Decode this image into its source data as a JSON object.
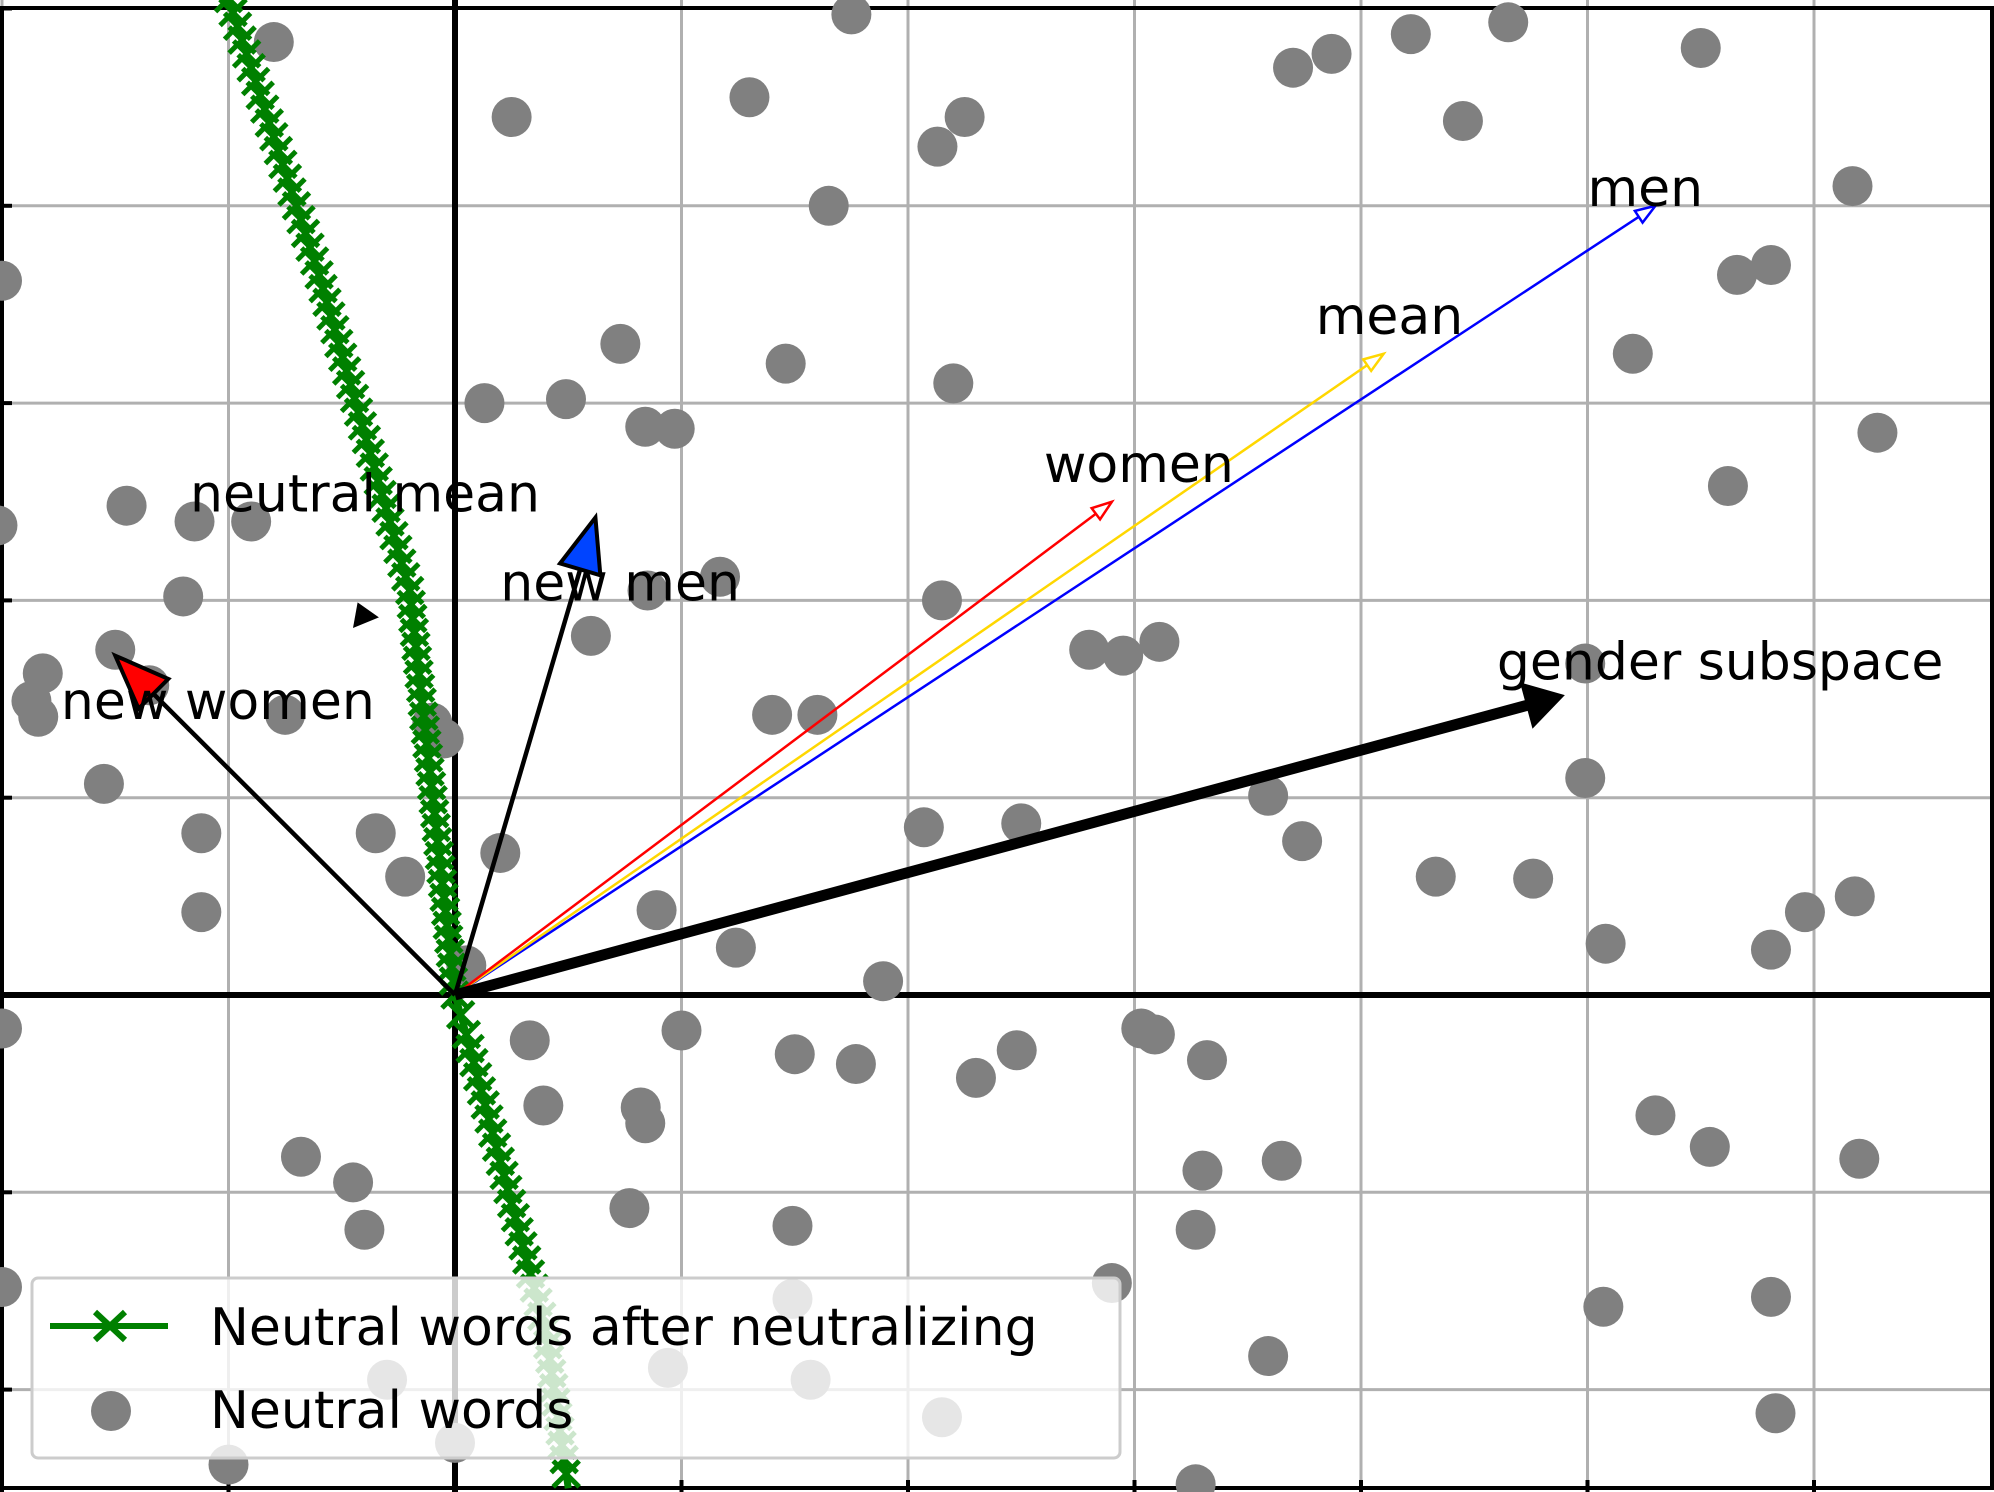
{
  "chart_data": {
    "type": "scatter",
    "title": "",
    "xlabel": "",
    "ylabel": "",
    "xlim": [
      -2,
      6.8
    ],
    "ylim": [
      -2.5,
      5
    ],
    "grid": true,
    "legend_placement": "bottom-left",
    "legend": [
      {
        "name": "Neutral words after neutralizing",
        "marker": "x-line",
        "color": "#008000"
      },
      {
        "name": "Neutral words",
        "marker": "circle",
        "color": "#808080"
      }
    ],
    "neutral_words": {
      "color": "#808080",
      "points": [
        [
          -0.8,
          4.83
        ],
        [
          1.75,
          4.97
        ],
        [
          4.22,
          4.87
        ],
        [
          4.65,
          4.93
        ],
        [
          5.5,
          4.8
        ],
        [
          0.25,
          4.45
        ],
        [
          1.3,
          4.55
        ],
        [
          1.65,
          4.0
        ],
        [
          2.25,
          4.45
        ],
        [
          2.13,
          4.3
        ],
        [
          3.7,
          4.7
        ],
        [
          3.87,
          4.77
        ],
        [
          4.45,
          4.43
        ],
        [
          6.17,
          4.1
        ],
        [
          5.66,
          3.65
        ],
        [
          5.81,
          3.7
        ],
        [
          -2,
          3.62
        ],
        [
          0.49,
          3.02
        ],
        [
          0.13,
          3.0
        ],
        [
          0.73,
          3.3
        ],
        [
          0.84,
          2.88
        ],
        [
          0.97,
          2.87
        ],
        [
          1.46,
          3.2
        ],
        [
          2.2,
          3.1
        ],
        [
          5.2,
          3.25
        ],
        [
          6.28,
          2.85
        ],
        [
          5.62,
          2.58
        ],
        [
          -1.45,
          2.48
        ],
        [
          -1.15,
          2.4
        ],
        [
          -0.9,
          2.4
        ],
        [
          -2.02,
          2.38
        ],
        [
          -1.2,
          2.02
        ],
        [
          0.85,
          2.05
        ],
        [
          1.17,
          2.12
        ],
        [
          0.6,
          1.82
        ],
        [
          2.15,
          2.0
        ],
        [
          2.8,
          1.75
        ],
        [
          3.11,
          1.79
        ],
        [
          2.95,
          1.72
        ],
        [
          4.99,
          1.68
        ],
        [
          -1.5,
          1.75
        ],
        [
          -1.35,
          1.57
        ],
        [
          -1.82,
          1.63
        ],
        [
          -1.87,
          1.49
        ],
        [
          -1.84,
          1.41
        ],
        [
          -0.75,
          1.42
        ],
        [
          -0.1,
          1.38
        ],
        [
          -0.05,
          1.3
        ],
        [
          1.4,
          1.42
        ],
        [
          1.6,
          1.42
        ],
        [
          4.99,
          1.1
        ],
        [
          3.59,
          1.01
        ],
        [
          -1.55,
          1.07
        ],
        [
          -1.12,
          0.82
        ],
        [
          -0.35,
          0.82
        ],
        [
          0.2,
          0.72
        ],
        [
          2.07,
          0.85
        ],
        [
          2.5,
          0.87
        ],
        [
          -0.22,
          0.6
        ],
        [
          -1.12,
          0.42
        ],
        [
          0.89,
          0.43
        ],
        [
          1.24,
          0.24
        ],
        [
          3.74,
          0.78
        ],
        [
          4.33,
          0.6
        ],
        [
          4.76,
          0.59
        ],
        [
          5.08,
          0.26
        ],
        [
          6.18,
          0.5
        ],
        [
          5.96,
          0.42
        ],
        [
          5.81,
          0.23
        ],
        [
          0.05,
          0.15
        ],
        [
          1.89,
          0.07
        ],
        [
          -2,
          -0.17
        ],
        [
          1.0,
          -0.18
        ],
        [
          0.33,
          -0.23
        ],
        [
          1.5,
          -0.3
        ],
        [
          1.77,
          -0.35
        ],
        [
          2.48,
          -0.28
        ],
        [
          2.3,
          -0.42
        ],
        [
          3.03,
          -0.17
        ],
        [
          3.09,
          -0.2
        ],
        [
          3.32,
          -0.33
        ],
        [
          0.39,
          -0.56
        ],
        [
          0.82,
          -0.57
        ],
        [
          0.84,
          -0.65
        ],
        [
          -0.68,
          -0.82
        ],
        [
          -0.45,
          -0.95
        ],
        [
          -0.4,
          -1.19
        ],
        [
          0.77,
          -1.08
        ],
        [
          1.49,
          -1.17
        ],
        [
          5.3,
          -0.61
        ],
        [
          5.54,
          -0.77
        ],
        [
          6.2,
          -0.83
        ],
        [
          3.3,
          -0.89
        ],
        [
          3.65,
          -0.84
        ],
        [
          3.27,
          -1.19
        ],
        [
          -2,
          -1.48
        ],
        [
          2.9,
          -1.46
        ],
        [
          1.49,
          -1.54
        ],
        [
          3.59,
          -1.83
        ],
        [
          5.07,
          -1.58
        ],
        [
          5.81,
          -1.53
        ],
        [
          -0.3,
          -1.95
        ],
        [
          0.94,
          -1.89
        ],
        [
          1.57,
          -1.95
        ],
        [
          2.15,
          -2.14
        ],
        [
          5.83,
          -2.12
        ],
        [
          -1.0,
          -2.38
        ],
        [
          0.0,
          -2.27
        ],
        [
          3.27,
          -2.48
        ]
      ]
    },
    "neutralized_words": {
      "color": "#008000",
      "line": [
        [
          -1.0,
          5.05
        ],
        [
          -0.6,
          3.65
        ],
        [
          -0.2,
          2.05
        ],
        [
          0.0,
          0.0
        ],
        [
          0.05,
          -0.2
        ],
        [
          0.4,
          -1.7
        ],
        [
          0.5,
          -2.5
        ]
      ]
    },
    "vectors": [
      {
        "label": "men",
        "from": [
          0,
          0
        ],
        "to": [
          5.3,
          4.0
        ],
        "color": "#0000ff",
        "style": "thin"
      },
      {
        "label": "mean",
        "from": [
          0,
          0
        ],
        "to": [
          4.1,
          3.25
        ],
        "color": "#ffd700",
        "style": "thin"
      },
      {
        "label": "women",
        "from": [
          0,
          0
        ],
        "to": [
          2.9,
          2.5
        ],
        "color": "#ff0000",
        "style": "thin"
      },
      {
        "label": "gender subspace",
        "from": [
          0,
          0
        ],
        "to": [
          4.9,
          1.52
        ],
        "color": "#000000",
        "style": "bold"
      },
      {
        "label": "new men",
        "from": [
          0,
          0
        ],
        "to": [
          0.62,
          2.42
        ],
        "color": "#000000",
        "head_color": "#0044ff",
        "style": "filled-head"
      },
      {
        "label": "new women",
        "from": [
          0,
          0
        ],
        "to": [
          -1.5,
          1.72
        ],
        "color": "#000000",
        "head_color": "#ff0000",
        "style": "filled-head"
      },
      {
        "label": "neutral mean",
        "from": [
          -0.38,
          1.85
        ],
        "to": [
          -0.43,
          1.99
        ],
        "color": "#000000",
        "style": "tiny"
      }
    ],
    "labels": [
      {
        "text": "men",
        "x": 5.0,
        "y": 4.0
      },
      {
        "text": "mean",
        "x": 3.8,
        "y": 3.35
      },
      {
        "text": "women",
        "x": 2.6,
        "y": 2.6
      },
      {
        "text": "gender subspace",
        "x": 4.6,
        "y": 1.6
      },
      {
        "text": "neutral mean",
        "x": -1.17,
        "y": 2.45
      },
      {
        "text": "new men",
        "x": 0.2,
        "y": 2.0
      },
      {
        "text": "new women",
        "x": -1.74,
        "y": 1.4
      }
    ]
  }
}
